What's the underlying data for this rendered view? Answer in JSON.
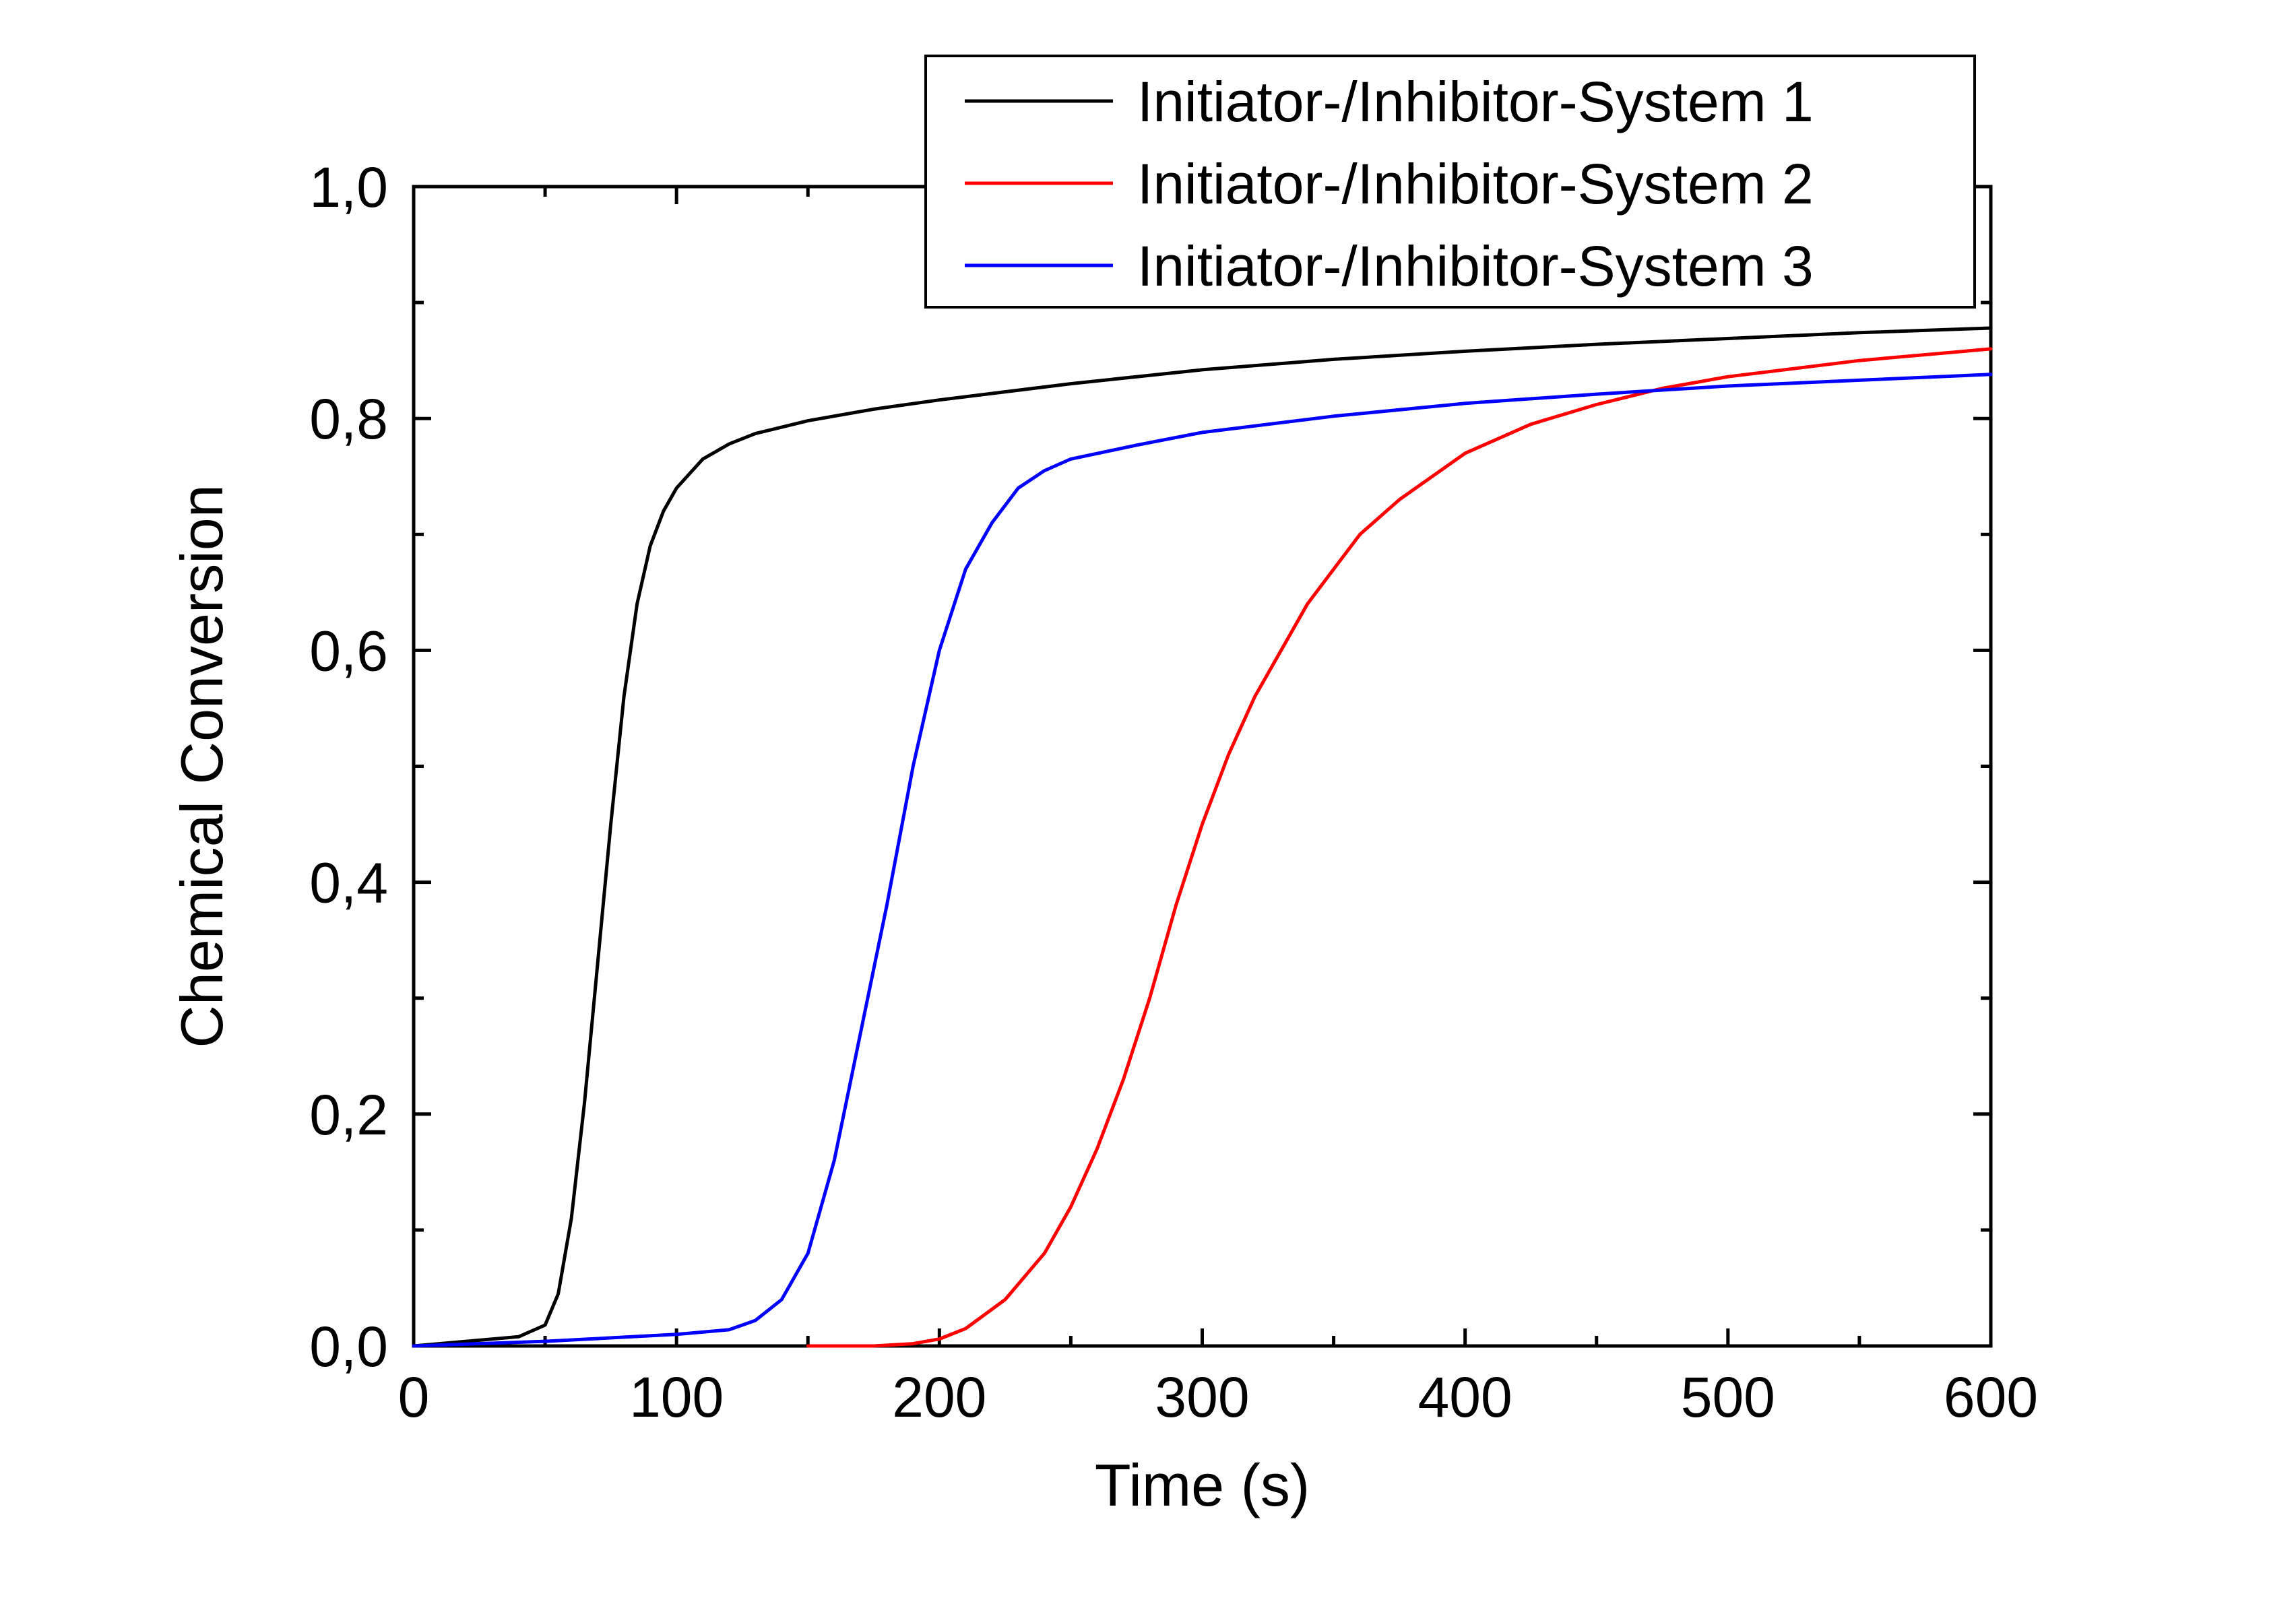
{
  "chart_data": {
    "type": "line",
    "title": "",
    "xlabel": "Time (s)",
    "ylabel": "Chemical Conversion",
    "xlim": [
      0,
      600
    ],
    "ylim": [
      0.0,
      1.0
    ],
    "x_ticks": [
      0,
      100,
      200,
      300,
      400,
      500,
      600
    ],
    "x_tick_labels": [
      "0",
      "100",
      "200",
      "300",
      "400",
      "500",
      "600"
    ],
    "y_ticks": [
      0.0,
      0.2,
      0.4,
      0.6,
      0.8,
      1.0
    ],
    "y_tick_labels": [
      "0,0",
      "0,2",
      "0,4",
      "0,6",
      "0,8",
      "1,0"
    ],
    "grid": false,
    "legend_position": "top-right",
    "series": [
      {
        "name": "Initiator-/Inhibitor-System 1",
        "color": "#000000",
        "x": [
          0,
          20,
          40,
          50,
          55,
          60,
          65,
          70,
          75,
          80,
          85,
          90,
          95,
          100,
          110,
          120,
          130,
          150,
          175,
          200,
          250,
          300,
          350,
          400,
          450,
          500,
          550,
          600
        ],
        "y": [
          0.0,
          0.004,
          0.008,
          0.018,
          0.045,
          0.11,
          0.21,
          0.33,
          0.45,
          0.56,
          0.64,
          0.69,
          0.72,
          0.74,
          0.765,
          0.778,
          0.787,
          0.798,
          0.808,
          0.816,
          0.83,
          0.842,
          0.851,
          0.858,
          0.864,
          0.869,
          0.874,
          0.878
        ]
      },
      {
        "name": "Initiator-/Inhibitor-System 2",
        "color": "#ff0000",
        "x": [
          150,
          175,
          190,
          200,
          210,
          225,
          240,
          250,
          260,
          270,
          280,
          290,
          300,
          310,
          320,
          330,
          340,
          350,
          360,
          375,
          400,
          425,
          450,
          475,
          500,
          550,
          600
        ],
        "y": [
          0.0,
          0.0,
          0.002,
          0.006,
          0.015,
          0.04,
          0.08,
          0.12,
          0.17,
          0.23,
          0.3,
          0.38,
          0.45,
          0.51,
          0.56,
          0.6,
          0.64,
          0.67,
          0.7,
          0.73,
          0.77,
          0.795,
          0.812,
          0.826,
          0.836,
          0.85,
          0.86
        ]
      },
      {
        "name": "Initiator-/Inhibitor-System 3",
        "color": "#0000ff",
        "x": [
          0,
          50,
          100,
          120,
          130,
          140,
          150,
          160,
          170,
          180,
          190,
          200,
          210,
          220,
          230,
          240,
          250,
          275,
          300,
          350,
          400,
          450,
          500,
          550,
          600
        ],
        "y": [
          0.0,
          0.004,
          0.01,
          0.014,
          0.022,
          0.04,
          0.08,
          0.16,
          0.27,
          0.38,
          0.5,
          0.6,
          0.67,
          0.71,
          0.74,
          0.755,
          0.765,
          0.777,
          0.788,
          0.802,
          0.813,
          0.821,
          0.828,
          0.833,
          0.838
        ]
      }
    ]
  }
}
